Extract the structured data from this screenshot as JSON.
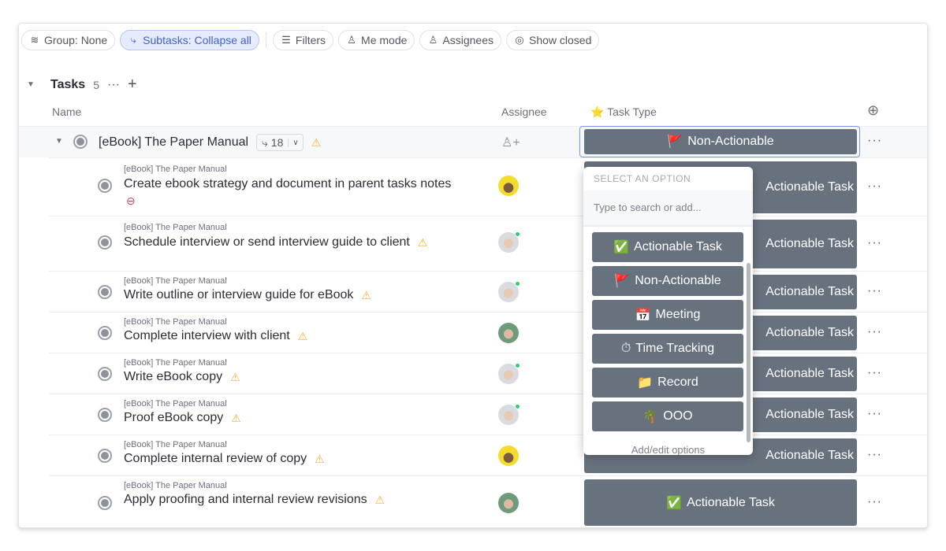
{
  "toolbar": {
    "group": "Group: None",
    "subtasks": "Subtasks: Collapse all",
    "filters": "Filters",
    "me_mode": "Me mode",
    "assignees": "Assignees",
    "show_closed": "Show closed"
  },
  "group": {
    "title": "Tasks",
    "count": "5"
  },
  "columns": {
    "name": "Name",
    "assignee": "Assignee",
    "task_type": "Task Type",
    "task_type_icon": "⭐"
  },
  "parent": {
    "name": "[eBook] The Paper Manual",
    "subtask_count": "18",
    "task_type": "Non-Actionable",
    "task_type_icon": "🚩"
  },
  "subtasks": [
    {
      "crumb": "[eBook] The Paper Manual",
      "name": "Create ebook strategy and document in parent tasks notes",
      "status_icon": "blocked-icon",
      "avatar": "yellow",
      "task_type": "Actionable Task"
    },
    {
      "crumb": "[eBook] The Paper Manual",
      "name": "Schedule interview or send interview guide to client",
      "status_icon": "warning-icon",
      "avatar": "grey-online",
      "task_type": "Actionable Task"
    },
    {
      "crumb": "[eBook] The Paper Manual",
      "name": "Write outline or interview guide for eBook",
      "status_icon": "warning-icon",
      "avatar": "grey-online",
      "task_type": "Actionable Task"
    },
    {
      "crumb": "[eBook] The Paper Manual",
      "name": "Complete interview with client",
      "status_icon": "warning-icon",
      "avatar": "green",
      "task_type": "Actionable Task"
    },
    {
      "crumb": "[eBook] The Paper Manual",
      "name": "Write eBook copy",
      "status_icon": "warning-icon",
      "avatar": "grey-online",
      "task_type": "Actionable Task"
    },
    {
      "crumb": "[eBook] The Paper Manual",
      "name": "Proof eBook copy",
      "status_icon": "warning-icon",
      "avatar": "grey-online",
      "task_type": "Actionable Task"
    },
    {
      "crumb": "[eBook] The Paper Manual",
      "name": "Complete internal review of copy",
      "status_icon": "warning-icon",
      "avatar": "yellow",
      "task_type": "Actionable Task"
    },
    {
      "crumb": "[eBook] The Paper Manual",
      "name": "Apply proofing and internal review revisions",
      "status_icon": "warning-icon",
      "avatar": "green",
      "task_type": "Actionable Task",
      "task_type_icon": "✅"
    }
  ],
  "dropdown": {
    "label": "SELECT AN OPTION",
    "search_placeholder": "Type to search or add...",
    "options": [
      {
        "icon": "✅",
        "label": "Actionable Task"
      },
      {
        "icon": "🚩",
        "label": "Non-Actionable"
      },
      {
        "icon": "📅",
        "label": "Meeting"
      },
      {
        "icon": "⏱",
        "label": "Time Tracking"
      },
      {
        "icon": "📁",
        "label": "Record"
      },
      {
        "icon": "🌴",
        "label": "OOO"
      }
    ],
    "footer": "Add/edit options"
  },
  "colors": {
    "tag_bg": "#68727f",
    "accent": "#3f5fd8",
    "warning": "#f2b43a",
    "blocked": "#d0434e"
  }
}
